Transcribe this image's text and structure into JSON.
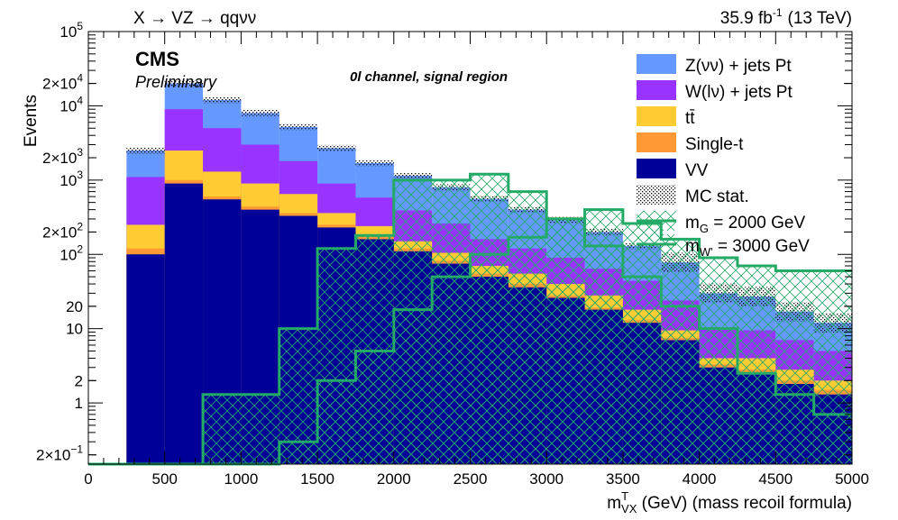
{
  "header": {
    "process": "X → VZ → qqνν",
    "lumi_value": "35.9 fb",
    "lumi_exp": "-1",
    "energy": "(13 TeV)"
  },
  "labels": {
    "cms": "CMS",
    "preliminary": "Preliminary",
    "channel": "0l channel, signal region"
  },
  "colors": {
    "znunu": "#6699ff",
    "wlnu": "#9933ff",
    "ttbar": "#ffcc33",
    "singlet": "#ff9933",
    "vv": "#000099",
    "signal": "#22aa66"
  },
  "chart_data": {
    "type": "bar",
    "stacked": true,
    "log_y": true,
    "bin_edges": [
      0,
      250,
      500,
      750,
      1000,
      1250,
      1500,
      1750,
      2000,
      2250,
      2500,
      2750,
      3000,
      3250,
      3500,
      3750,
      4000,
      4250,
      4500,
      4750,
      5000
    ],
    "xlim": [
      0,
      5000
    ],
    "ylim": [
      0.15,
      100000
    ],
    "x_ticks": [
      0,
      500,
      1000,
      1500,
      2000,
      2500,
      3000,
      3500,
      4000,
      4500,
      5000
    ],
    "x_tick_labels": [
      "0",
      "500",
      "1000",
      "1500",
      "2000",
      "2500",
      "3000",
      "3500",
      "4000",
      "4500",
      "5000"
    ],
    "y_ticks": [
      0.2,
      1,
      2,
      10,
      20,
      100,
      200,
      1000,
      2000,
      10000,
      20000,
      100000
    ],
    "y_tick_labels": [
      {
        "base": "2×10",
        "exp": "−1"
      },
      {
        "base": "1",
        "exp": ""
      },
      {
        "base": "2",
        "exp": ""
      },
      {
        "base": "10",
        "exp": ""
      },
      {
        "base": "20",
        "exp": ""
      },
      {
        "base": "10",
        "exp": "2"
      },
      {
        "base": "2×10",
        "exp": "2"
      },
      {
        "base": "10",
        "exp": "3"
      },
      {
        "base": "2×10",
        "exp": "3"
      },
      {
        "base": "10",
        "exp": "4"
      },
      {
        "base": "2×10",
        "exp": "4"
      },
      {
        "base": "10",
        "exp": "5"
      }
    ],
    "xlabel": {
      "base": "m",
      "sup": "T",
      "sub": "VX",
      "rest": " (GeV) (mass recoil formula)"
    },
    "ylabel": "Events",
    "series": [
      {
        "name": "VV",
        "key": "vv",
        "values": [
          0,
          100,
          900,
          550,
          400,
          330,
          230,
          160,
          110,
          75,
          50,
          36,
          26,
          18,
          12,
          7,
          3,
          2.5,
          1.8,
          1.3,
          2
        ]
      },
      {
        "name": "Single-t",
        "key": "singlet",
        "values": [
          0,
          120,
          1000,
          600,
          440,
          360,
          250,
          175,
          120,
          82,
          55,
          40,
          28,
          19,
          13,
          7.5,
          3.3,
          2.8,
          2,
          1.5,
          2.2
        ]
      },
      {
        "name": "tt̄",
        "key": "ttbar",
        "values": [
          0,
          250,
          2500,
          1300,
          900,
          650,
          360,
          240,
          150,
          105,
          70,
          55,
          40,
          28,
          18,
          9.5,
          4,
          4,
          2.8,
          2,
          2.6
        ]
      },
      {
        "name": "W(lν) + jets Pt",
        "key": "wlnu",
        "values": [
          0,
          1100,
          9000,
          5000,
          3000,
          1800,
          900,
          580,
          390,
          260,
          160,
          120,
          90,
          64,
          44,
          24,
          10,
          9.5,
          7,
          5,
          6
        ]
      },
      {
        "name": "Z(νν) + jets Pt",
        "key": "znunu",
        "values": [
          0,
          2500,
          20000,
          12000,
          8000,
          5200,
          2700,
          1700,
          1150,
          800,
          560,
          400,
          290,
          200,
          130,
          78,
          30,
          27,
          17,
          12,
          16
        ]
      }
    ],
    "mc_stat_label": "MC stat.",
    "signals": [
      {
        "name_base": "m",
        "name_sub": "G",
        "name_rest": " = 2000 GeV",
        "values": [
          0.15,
          0.15,
          0.15,
          1.3,
          1.3,
          10,
          120,
          180,
          1000,
          1000,
          1200,
          700,
          300,
          130,
          50,
          20,
          10,
          2.5,
          1.3,
          0.7,
          0.5
        ]
      },
      {
        "name_base": "m",
        "name_sub": "W'",
        "name_rest": " = 3000 GeV",
        "values": [
          0.15,
          0.15,
          0.15,
          0.15,
          0.15,
          0.3,
          2,
          5,
          18,
          50,
          100,
          170,
          300,
          400,
          260,
          160,
          90,
          70,
          60,
          60,
          230
        ]
      }
    ]
  }
}
